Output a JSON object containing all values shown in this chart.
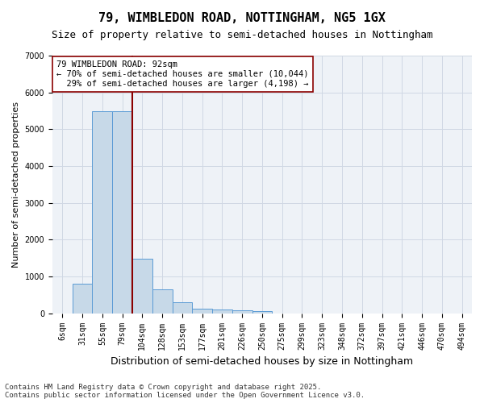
{
  "title": "79, WIMBLEDON ROAD, NOTTINGHAM, NG5 1GX",
  "subtitle": "Size of property relative to semi-detached houses in Nottingham",
  "xlabel": "Distribution of semi-detached houses by size in Nottingham",
  "ylabel": "Number of semi-detached properties",
  "bar_values": [
    0,
    800,
    5500,
    5500,
    1480,
    650,
    290,
    130,
    110,
    70,
    50,
    0,
    0,
    0,
    0,
    0,
    0,
    0,
    0,
    0,
    0
  ],
  "bin_labels": [
    "6sqm",
    "31sqm",
    "55sqm",
    "79sqm",
    "104sqm",
    "128sqm",
    "153sqm",
    "177sqm",
    "201sqm",
    "226sqm",
    "250sqm",
    "275sqm",
    "299sqm",
    "323sqm",
    "348sqm",
    "372sqm",
    "397sqm",
    "421sqm",
    "446sqm",
    "470sqm",
    "494sqm"
  ],
  "num_bins": 21,
  "bar_color": "#c7d9e8",
  "bar_edge_color": "#5b9bd5",
  "vline_x": 3.5,
  "vline_color": "#8b0000",
  "annotation_text": "79 WIMBLEDON ROAD: 92sqm\n← 70% of semi-detached houses are smaller (10,044)\n  29% of semi-detached houses are larger (4,198) →",
  "annotation_box_color": "#ffffff",
  "annotation_box_edge_color": "#8b0000",
  "ylim": [
    0,
    7000
  ],
  "yticks": [
    0,
    1000,
    2000,
    3000,
    4000,
    5000,
    6000,
    7000
  ],
  "grid_color": "#d0d8e4",
  "bg_color": "#eef2f7",
  "footer": "Contains HM Land Registry data © Crown copyright and database right 2025.\nContains public sector information licensed under the Open Government Licence v3.0.",
  "title_fontsize": 11,
  "subtitle_fontsize": 9,
  "xlabel_fontsize": 9,
  "ylabel_fontsize": 8,
  "tick_fontsize": 7,
  "annotation_fontsize": 7.5,
  "footer_fontsize": 6.5
}
